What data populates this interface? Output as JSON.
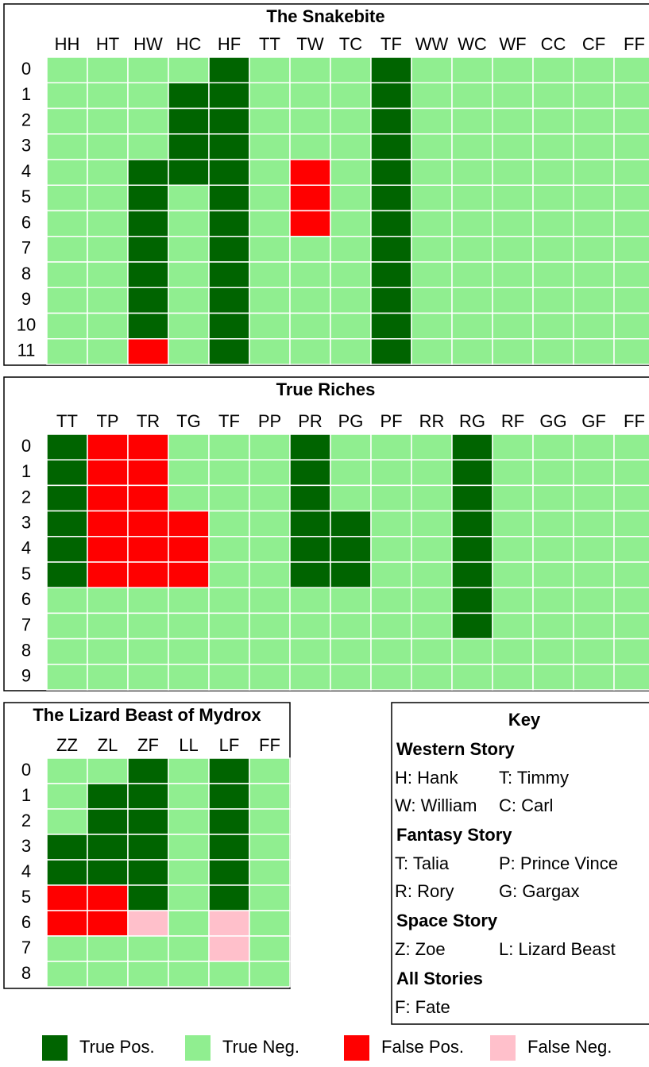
{
  "chart_data": {
    "type": "heatmap",
    "panels": [
      {
        "title": "The Snakebite",
        "columns": [
          "HH",
          "HT",
          "HW",
          "HC",
          "HF",
          "TT",
          "TW",
          "TC",
          "TF",
          "WW",
          "WC",
          "WF",
          "CC",
          "CF",
          "FF"
        ],
        "rows": [
          0,
          1,
          2,
          3,
          4,
          5,
          6,
          7,
          8,
          9,
          10,
          11
        ],
        "cells": [
          [
            "True Neg.",
            "True Neg.",
            "True Neg.",
            "True Neg.",
            "True Pos.",
            "True Neg.",
            "True Neg.",
            "True Neg.",
            "True Pos.",
            "True Neg.",
            "True Neg.",
            "True Neg.",
            "True Neg.",
            "True Neg.",
            "True Neg."
          ],
          [
            "True Neg.",
            "True Neg.",
            "True Neg.",
            "True Pos.",
            "True Pos.",
            "True Neg.",
            "True Neg.",
            "True Neg.",
            "True Pos.",
            "True Neg.",
            "True Neg.",
            "True Neg.",
            "True Neg.",
            "True Neg.",
            "True Neg."
          ],
          [
            "True Neg.",
            "True Neg.",
            "True Neg.",
            "True Pos.",
            "True Pos.",
            "True Neg.",
            "True Neg.",
            "True Neg.",
            "True Pos.",
            "True Neg.",
            "True Neg.",
            "True Neg.",
            "True Neg.",
            "True Neg.",
            "True Neg."
          ],
          [
            "True Neg.",
            "True Neg.",
            "True Neg.",
            "True Pos.",
            "True Pos.",
            "True Neg.",
            "True Neg.",
            "True Neg.",
            "True Pos.",
            "True Neg.",
            "True Neg.",
            "True Neg.",
            "True Neg.",
            "True Neg.",
            "True Neg."
          ],
          [
            "True Neg.",
            "True Neg.",
            "True Pos.",
            "True Pos.",
            "True Pos.",
            "True Neg.",
            "False Pos.",
            "True Neg.",
            "True Pos.",
            "True Neg.",
            "True Neg.",
            "True Neg.",
            "True Neg.",
            "True Neg.",
            "True Neg."
          ],
          [
            "True Neg.",
            "True Neg.",
            "True Pos.",
            "True Neg.",
            "True Pos.",
            "True Neg.",
            "False Pos.",
            "True Neg.",
            "True Pos.",
            "True Neg.",
            "True Neg.",
            "True Neg.",
            "True Neg.",
            "True Neg.",
            "True Neg."
          ],
          [
            "True Neg.",
            "True Neg.",
            "True Pos.",
            "True Neg.",
            "True Pos.",
            "True Neg.",
            "False Pos.",
            "True Neg.",
            "True Pos.",
            "True Neg.",
            "True Neg.",
            "True Neg.",
            "True Neg.",
            "True Neg.",
            "True Neg."
          ],
          [
            "True Neg.",
            "True Neg.",
            "True Pos.",
            "True Neg.",
            "True Pos.",
            "True Neg.",
            "True Neg.",
            "True Neg.",
            "True Pos.",
            "True Neg.",
            "True Neg.",
            "True Neg.",
            "True Neg.",
            "True Neg.",
            "True Neg."
          ],
          [
            "True Neg.",
            "True Neg.",
            "True Pos.",
            "True Neg.",
            "True Pos.",
            "True Neg.",
            "True Neg.",
            "True Neg.",
            "True Pos.",
            "True Neg.",
            "True Neg.",
            "True Neg.",
            "True Neg.",
            "True Neg.",
            "True Neg."
          ],
          [
            "True Neg.",
            "True Neg.",
            "True Pos.",
            "True Neg.",
            "True Pos.",
            "True Neg.",
            "True Neg.",
            "True Neg.",
            "True Pos.",
            "True Neg.",
            "True Neg.",
            "True Neg.",
            "True Neg.",
            "True Neg.",
            "True Neg."
          ],
          [
            "True Neg.",
            "True Neg.",
            "True Pos.",
            "True Neg.",
            "True Pos.",
            "True Neg.",
            "True Neg.",
            "True Neg.",
            "True Pos.",
            "True Neg.",
            "True Neg.",
            "True Neg.",
            "True Neg.",
            "True Neg.",
            "True Neg."
          ],
          [
            "True Neg.",
            "True Neg.",
            "False Pos.",
            "True Neg.",
            "True Pos.",
            "True Neg.",
            "True Neg.",
            "True Neg.",
            "True Pos.",
            "True Neg.",
            "True Neg.",
            "True Neg.",
            "True Neg.",
            "True Neg.",
            "True Neg."
          ]
        ]
      },
      {
        "title": "True Riches",
        "columns": [
          "TT",
          "TP",
          "TR",
          "TG",
          "TF",
          "PP",
          "PR",
          "PG",
          "PF",
          "RR",
          "RG",
          "RF",
          "GG",
          "GF",
          "FF"
        ],
        "rows": [
          0,
          1,
          2,
          3,
          4,
          5,
          6,
          7,
          8,
          9
        ],
        "cells": [
          [
            "True Pos.",
            "False Pos.",
            "False Pos.",
            "True Neg.",
            "True Neg.",
            "True Neg.",
            "True Pos.",
            "True Neg.",
            "True Neg.",
            "True Neg.",
            "True Pos.",
            "True Neg.",
            "True Neg.",
            "True Neg.",
            "True Neg."
          ],
          [
            "True Pos.",
            "False Pos.",
            "False Pos.",
            "True Neg.",
            "True Neg.",
            "True Neg.",
            "True Pos.",
            "True Neg.",
            "True Neg.",
            "True Neg.",
            "True Pos.",
            "True Neg.",
            "True Neg.",
            "True Neg.",
            "True Neg."
          ],
          [
            "True Pos.",
            "False Pos.",
            "False Pos.",
            "True Neg.",
            "True Neg.",
            "True Neg.",
            "True Pos.",
            "True Neg.",
            "True Neg.",
            "True Neg.",
            "True Pos.",
            "True Neg.",
            "True Neg.",
            "True Neg.",
            "True Neg."
          ],
          [
            "True Pos.",
            "False Pos.",
            "False Pos.",
            "False Pos.",
            "True Neg.",
            "True Neg.",
            "True Pos.",
            "True Pos.",
            "True Neg.",
            "True Neg.",
            "True Pos.",
            "True Neg.",
            "True Neg.",
            "True Neg.",
            "True Neg."
          ],
          [
            "True Pos.",
            "False Pos.",
            "False Pos.",
            "False Pos.",
            "True Neg.",
            "True Neg.",
            "True Pos.",
            "True Pos.",
            "True Neg.",
            "True Neg.",
            "True Pos.",
            "True Neg.",
            "True Neg.",
            "True Neg.",
            "True Neg."
          ],
          [
            "True Pos.",
            "False Pos.",
            "False Pos.",
            "False Pos.",
            "True Neg.",
            "True Neg.",
            "True Pos.",
            "True Pos.",
            "True Neg.",
            "True Neg.",
            "True Pos.",
            "True Neg.",
            "True Neg.",
            "True Neg.",
            "True Neg."
          ],
          [
            "True Neg.",
            "True Neg.",
            "True Neg.",
            "True Neg.",
            "True Neg.",
            "True Neg.",
            "True Neg.",
            "True Neg.",
            "True Neg.",
            "True Neg.",
            "True Pos.",
            "True Neg.",
            "True Neg.",
            "True Neg.",
            "True Neg."
          ],
          [
            "True Neg.",
            "True Neg.",
            "True Neg.",
            "True Neg.",
            "True Neg.",
            "True Neg.",
            "True Neg.",
            "True Neg.",
            "True Neg.",
            "True Neg.",
            "True Pos.",
            "True Neg.",
            "True Neg.",
            "True Neg.",
            "True Neg."
          ],
          [
            "True Neg.",
            "True Neg.",
            "True Neg.",
            "True Neg.",
            "True Neg.",
            "True Neg.",
            "True Neg.",
            "True Neg.",
            "True Neg.",
            "True Neg.",
            "True Neg.",
            "True Neg.",
            "True Neg.",
            "True Neg.",
            "True Neg."
          ],
          [
            "True Neg.",
            "True Neg.",
            "True Neg.",
            "True Neg.",
            "True Neg.",
            "True Neg.",
            "True Neg.",
            "True Neg.",
            "True Neg.",
            "True Neg.",
            "True Neg.",
            "True Neg.",
            "True Neg.",
            "True Neg.",
            "True Neg."
          ]
        ]
      },
      {
        "title": "The Lizard Beast of Mydrox",
        "columns": [
          "ZZ",
          "ZL",
          "ZF",
          "LL",
          "LF",
          "FF"
        ],
        "rows": [
          0,
          1,
          2,
          3,
          4,
          5,
          6,
          7,
          8
        ],
        "cells": [
          [
            "True Neg.",
            "True Neg.",
            "True Pos.",
            "True Neg.",
            "True Pos.",
            "True Neg."
          ],
          [
            "True Neg.",
            "True Pos.",
            "True Pos.",
            "True Neg.",
            "True Pos.",
            "True Neg."
          ],
          [
            "True Neg.",
            "True Pos.",
            "True Pos.",
            "True Neg.",
            "True Pos.",
            "True Neg."
          ],
          [
            "True Pos.",
            "True Pos.",
            "True Pos.",
            "True Neg.",
            "True Pos.",
            "True Neg."
          ],
          [
            "True Pos.",
            "True Pos.",
            "True Pos.",
            "True Neg.",
            "True Pos.",
            "True Neg."
          ],
          [
            "False Pos.",
            "False Pos.",
            "True Pos.",
            "True Neg.",
            "True Pos.",
            "True Neg."
          ],
          [
            "False Pos.",
            "False Pos.",
            "False Neg.",
            "True Neg.",
            "False Neg.",
            "True Neg."
          ],
          [
            "True Neg.",
            "True Neg.",
            "True Neg.",
            "True Neg.",
            "False Neg.",
            "True Neg."
          ],
          [
            "True Neg.",
            "True Neg.",
            "True Neg.",
            "True Neg.",
            "True Neg.",
            "True Neg."
          ]
        ]
      }
    ],
    "legend": [
      {
        "name": "True Pos.",
        "color": "#006400"
      },
      {
        "name": "True Neg.",
        "color": "#90ee90"
      },
      {
        "name": "False Pos.",
        "color": "#ff0000"
      },
      {
        "name": "False Neg.",
        "color": "#ffc0cb"
      }
    ]
  },
  "key": {
    "title": "Key",
    "sections": [
      {
        "heading": "Western Story",
        "entries": [
          [
            "H: Hank",
            "T: Timmy"
          ],
          [
            "W: William",
            "C: Carl"
          ]
        ]
      },
      {
        "heading": "Fantasy Story",
        "entries": [
          [
            "T: Talia",
            "P: Prince Vince"
          ],
          [
            "R: Rory",
            "G: Gargax"
          ]
        ]
      },
      {
        "heading": "Space Story",
        "entries": [
          [
            "Z: Zoe",
            "L: Lizard Beast"
          ]
        ]
      },
      {
        "heading": "All Stories",
        "entries": [
          [
            "F: Fate"
          ]
        ]
      }
    ]
  }
}
